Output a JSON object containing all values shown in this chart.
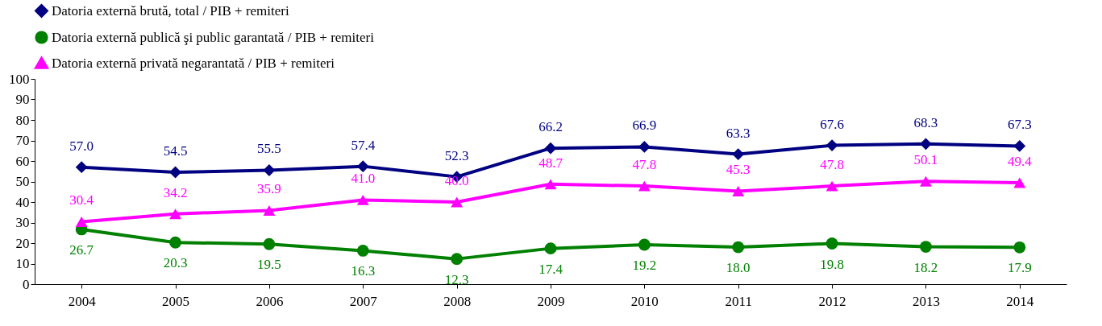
{
  "chart_data": {
    "type": "line",
    "categories": [
      "2004",
      "2005",
      "2006",
      "2007",
      "2008",
      "2009",
      "2010",
      "2011",
      "2012",
      "2013",
      "2014"
    ],
    "series": [
      {
        "name": "Datoria externă brută, total / PIB + remiteri",
        "color": "#000080",
        "marker": "diamond",
        "line_style": "solid",
        "values": [
          57.0,
          54.5,
          55.5,
          57.4,
          52.3,
          66.2,
          66.9,
          63.3,
          67.6,
          68.3,
          67.3
        ],
        "value_labels": [
          "57.0",
          "54.5",
          "55.5",
          "57.4",
          "52.3",
          "66.2",
          "66.9",
          "63.3",
          "67.6",
          "68.3",
          "67.3"
        ]
      },
      {
        "name": "Datoria externă publică şi public garantată / PIB + remiteri",
        "color": "#008000",
        "marker": "circle",
        "line_style": "solid",
        "values": [
          26.7,
          20.3,
          19.5,
          16.3,
          12.3,
          17.4,
          19.2,
          18.0,
          19.8,
          18.2,
          17.9
        ],
        "value_labels": [
          "26.7",
          "20.3",
          "19.5",
          "16.3",
          "12.3",
          "17.4",
          "19.2",
          "18.0",
          "19.8",
          "18.2",
          "17.9"
        ]
      },
      {
        "name": "Datoria externă privată negarantată / PIB + remiteri",
        "color": "#ff00ff",
        "marker": "triangle",
        "line_style": "solid",
        "values": [
          30.4,
          34.2,
          35.9,
          41.0,
          40.0,
          48.7,
          47.8,
          45.3,
          47.8,
          50.1,
          49.4
        ],
        "value_labels": [
          "30.4",
          "34.2",
          "35.9",
          "41.0",
          "40.0",
          "48.7",
          "47.8",
          "45.3",
          "47.8",
          "50.1",
          "49.4"
        ]
      }
    ],
    "ylim": [
      0,
      100
    ],
    "yticks": [
      0,
      10,
      20,
      30,
      40,
      50,
      60,
      70,
      80,
      90,
      100
    ],
    "grid": false,
    "legend": "top"
  }
}
